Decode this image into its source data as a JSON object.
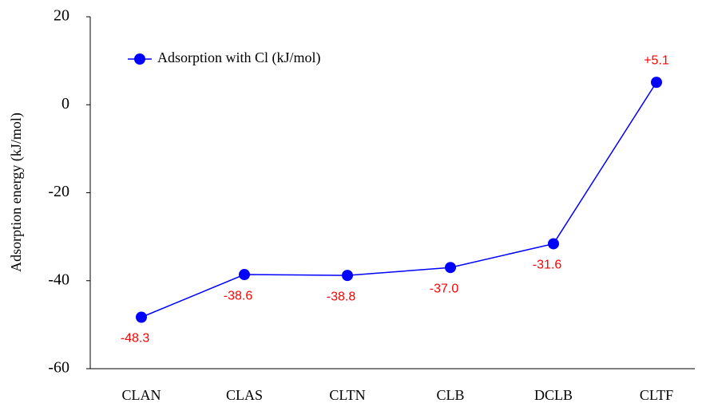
{
  "chart_data": {
    "type": "line",
    "y_label": "Adsorption energy (kJ/mol)",
    "categories": [
      "CLAN",
      "CLAS",
      "CLTN",
      "CLB",
      "DCLB",
      "CLTF"
    ],
    "series": [
      {
        "name": "Adsorption with Cl (kJ/mol)",
        "color": "#0000ff",
        "values": [
          -48.3,
          -38.6,
          -38.8,
          -37.0,
          -31.6,
          5.1
        ],
        "value_labels": [
          "-48.3",
          "-38.6",
          "-38.8",
          "-37.0",
          "-31.6",
          "+5.1"
        ],
        "value_label_color": "#ff0000"
      }
    ],
    "ylim": [
      -60,
      20
    ],
    "yticks": [
      -60,
      -40,
      -20,
      0,
      20
    ],
    "grid": false,
    "legend": "upper left"
  }
}
